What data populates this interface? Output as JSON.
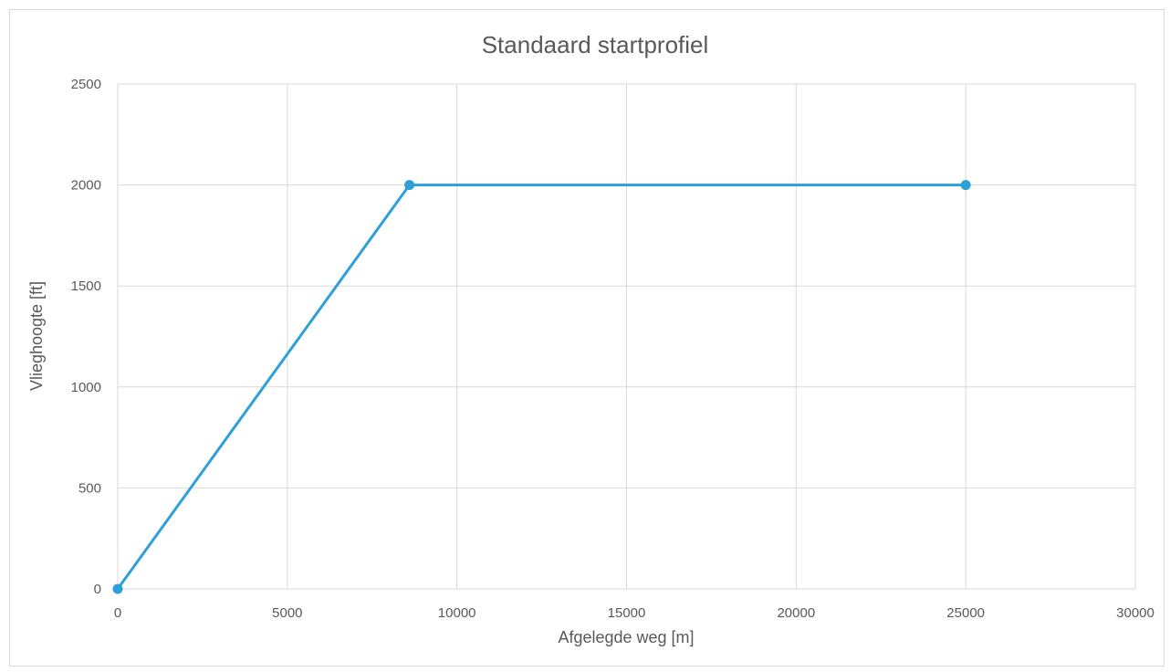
{
  "chart_data": {
    "type": "line",
    "title": "Standaard startprofiel",
    "xlabel": "Afgelegde weg [m]",
    "ylabel": "Vlieghoogte [ft]",
    "xlim": [
      0,
      30000
    ],
    "ylim": [
      0,
      2500
    ],
    "x_ticks": [
      0,
      5000,
      10000,
      15000,
      20000,
      25000,
      30000
    ],
    "y_ticks": [
      0,
      500,
      1000,
      1500,
      2000,
      2500
    ],
    "grid": true,
    "legend": "none",
    "series": [
      {
        "color": "#2f9fd8",
        "x": [
          0,
          8600,
          25000
        ],
        "y": [
          0,
          2000,
          2000
        ]
      }
    ]
  }
}
